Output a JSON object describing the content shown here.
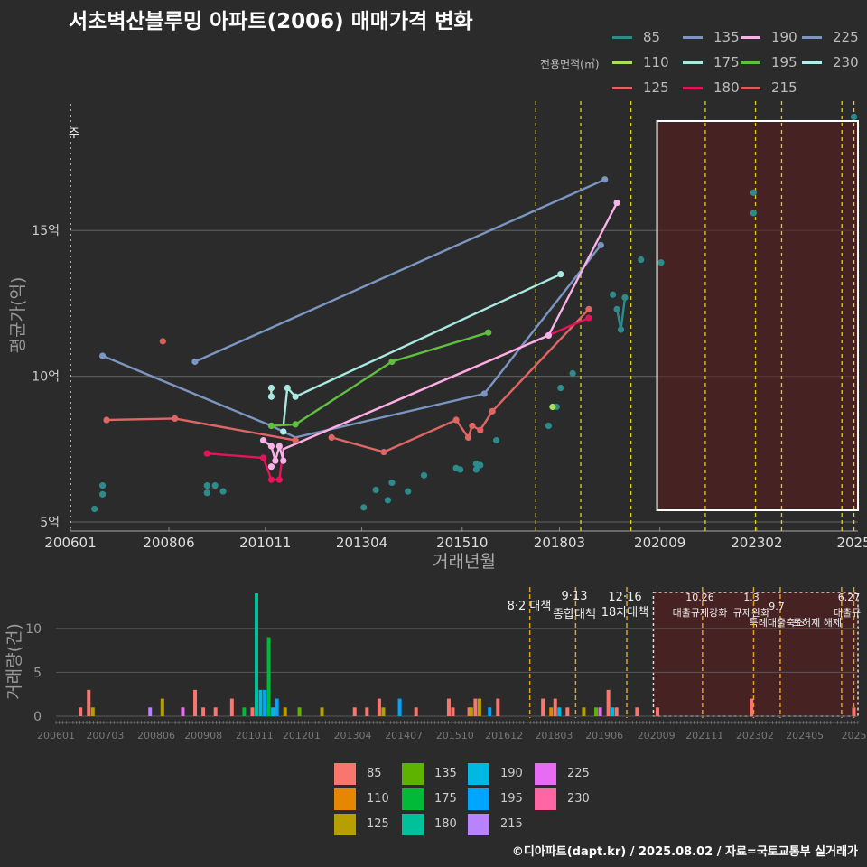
{
  "title": "서초벽산블루밍 아파트(2006) 매매가격 변화",
  "legend_title": "전용면적(㎡)",
  "credit": "©디아파트(dapt.kr) / 2025.08.02 / 자료=국토교통부 실거래가",
  "colors": {
    "85": "#2e8b8b",
    "110": "#a6e35a",
    "125": "#e06666",
    "135": "#7b96c2",
    "175": "#a8e8e0",
    "180": "#e8125a",
    "190": "#f7b2e8",
    "195": "#5fbf3f",
    "215": "#d9605a",
    "225": "#7b96c2",
    "230": "#aef0f0"
  },
  "bar_colors": {
    "85": "#f8766d",
    "110": "#e58700",
    "125": "#b79f00",
    "135": "#5eb300",
    "175": "#00ba38",
    "180": "#00c19a",
    "190": "#00b9e3",
    "195": "#00a5ff",
    "215": "#b983ff",
    "225": "#e76bf3",
    "230": "#ff67a4"
  },
  "chart_data": [
    {
      "type": "line",
      "title": "서초벽산블루밍 아파트(2006) 매매가격 변화",
      "xlabel": "거래년월",
      "ylabel": "평균가(억)",
      "x_ticks": [
        "200601",
        "200806",
        "201011",
        "201304",
        "201510",
        "201803",
        "202009",
        "202302",
        "2025"
      ],
      "y_ticks": [
        "5억",
        "10억",
        "15억"
      ],
      "ylim": [
        5,
        19.5
      ],
      "xlim": [
        2006.0,
        2025.6
      ],
      "top_marker": "주",
      "grid": true,
      "series": [
        {
          "name": "85",
          "lines": [],
          "points": [
            [
              2006.6,
              5.45
            ],
            [
              2006.8,
              5.95
            ],
            [
              2006.8,
              6.25
            ],
            [
              2009.4,
              6.25
            ],
            [
              2009.4,
              6.0
            ],
            [
              2009.6,
              6.25
            ],
            [
              2009.8,
              6.05
            ],
            [
              2013.3,
              5.5
            ],
            [
              2013.6,
              6.1
            ],
            [
              2013.9,
              5.75
            ],
            [
              2014.0,
              6.35
            ],
            [
              2014.4,
              6.05
            ],
            [
              2014.8,
              6.6
            ],
            [
              2015.6,
              6.85
            ],
            [
              2015.7,
              6.8
            ],
            [
              2016.1,
              6.8
            ],
            [
              2016.1,
              7.0
            ],
            [
              2016.2,
              6.95
            ],
            [
              2016.6,
              7.8
            ],
            [
              2017.9,
              8.3
            ],
            [
              2018.1,
              8.95
            ],
            [
              2018.2,
              9.6
            ],
            [
              2018.5,
              10.1
            ],
            [
              2019.5,
              12.8
            ],
            [
              2019.6,
              12.3
            ],
            [
              2019.7,
              11.6
            ],
            [
              2019.8,
              12.7
            ],
            [
              2020.2,
              14.0
            ],
            [
              2020.7,
              13.9
            ],
            [
              2023.0,
              16.3
            ],
            [
              2023.0,
              15.6
            ],
            [
              2025.5,
              18.9
            ]
          ],
          "segments": [
            [
              [
                2019.6,
                12.3
              ],
              [
                2019.7,
                11.6
              ],
              [
                2019.8,
                12.7
              ]
            ]
          ]
        },
        {
          "name": "110",
          "points": [
            [
              2018.0,
              8.95
            ]
          ],
          "segments": []
        },
        {
          "name": "125",
          "points": [
            [
              2006.9,
              8.5
            ],
            [
              2008.6,
              8.55
            ],
            [
              2011.6,
              7.8
            ],
            [
              2012.5,
              7.9
            ],
            [
              2013.8,
              7.4
            ],
            [
              2015.6,
              8.5
            ],
            [
              2015.9,
              7.9
            ],
            [
              2016.0,
              8.3
            ],
            [
              2016.2,
              8.15
            ],
            [
              2016.5,
              8.8
            ],
            [
              2018.9,
              12.3
            ]
          ],
          "segments": [
            [
              [
                2006.9,
                8.5
              ],
              [
                2008.6,
                8.55
              ],
              [
                2011.6,
                7.8
              ]
            ],
            [
              [
                2012.5,
                7.9
              ],
              [
                2013.8,
                7.4
              ],
              [
                2015.6,
                8.5
              ],
              [
                2015.9,
                7.9
              ],
              [
                2016.0,
                8.3
              ],
              [
                2016.2,
                8.15
              ],
              [
                2016.5,
                8.8
              ],
              [
                2018.9,
                12.3
              ]
            ]
          ]
        },
        {
          "name": "135",
          "points": [
            [
              2006.8,
              10.7
            ],
            [
              2011.0,
              8.3
            ],
            [
              2016.3,
              9.4
            ],
            [
              2019.2,
              14.5
            ]
          ],
          "segments": [
            [
              [
                2006.8,
                10.7
              ],
              [
                2011.0,
                8.3
              ],
              [
                2011.6,
                7.9
              ],
              [
                2016.3,
                9.4
              ],
              [
                2019.2,
                14.5
              ]
            ]
          ]
        },
        {
          "name": "175",
          "points": [
            [
              2011.0,
              9.6
            ],
            [
              2011.0,
              9.3
            ],
            [
              2011.4,
              9.6
            ],
            [
              2011.6,
              9.3
            ],
            [
              2018.2,
              13.5
            ]
          ],
          "segments": [
            [
              [
                2011.0,
                9.6
              ],
              [
                2011.0,
                9.3
              ]
            ],
            [
              [
                2011.3,
                8.3
              ],
              [
                2011.4,
                9.6
              ],
              [
                2011.6,
                9.3
              ],
              [
                2018.2,
                13.5
              ]
            ]
          ]
        },
        {
          "name": "180",
          "points": [
            [
              2009.4,
              7.35
            ],
            [
              2010.8,
              7.2
            ],
            [
              2011.0,
              6.45
            ],
            [
              2011.2,
              6.45
            ],
            [
              2018.9,
              12.0
            ]
          ],
          "segments": [
            [
              [
                2009.4,
                7.35
              ],
              [
                2010.8,
                7.2
              ],
              [
                2011.0,
                6.45
              ],
              [
                2011.2,
                6.45
              ],
              [
                2011.3,
                7.5
              ],
              [
                2018.9,
                12.0
              ]
            ]
          ]
        },
        {
          "name": "190",
          "points": [
            [
              2010.8,
              7.8
            ],
            [
              2011.0,
              7.6
            ],
            [
              2011.1,
              7.1
            ],
            [
              2011.2,
              7.6
            ],
            [
              2011.3,
              7.1
            ],
            [
              2011.0,
              6.9
            ],
            [
              2017.9,
              11.4
            ],
            [
              2019.6,
              15.95
            ]
          ],
          "segments": [
            [
              [
                2010.8,
                7.8
              ],
              [
                2011.0,
                7.6
              ],
              [
                2011.1,
                7.1
              ],
              [
                2011.2,
                7.6
              ],
              [
                2011.3,
                7.1
              ],
              [
                2011.3,
                7.5
              ],
              [
                2017.9,
                11.4
              ],
              [
                2019.6,
                15.95
              ]
            ]
          ]
        },
        {
          "name": "195",
          "points": [
            [
              2011.0,
              8.3
            ],
            [
              2011.6,
              8.35
            ],
            [
              2014.0,
              10.5
            ],
            [
              2016.4,
              11.5
            ]
          ],
          "segments": [
            [
              [
                2011.0,
                8.3
              ],
              [
                2011.6,
                8.35
              ],
              [
                2014.0,
                10.5
              ],
              [
                2016.4,
                11.5
              ]
            ]
          ]
        },
        {
          "name": "215",
          "points": [
            [
              2008.3,
              11.2
            ]
          ],
          "segments": []
        },
        {
          "name": "225",
          "points": [
            [
              2009.1,
              10.5
            ],
            [
              2019.3,
              16.75
            ]
          ],
          "segments": [
            [
              [
                2009.1,
                10.5
              ],
              [
                2019.3,
                16.75
              ]
            ]
          ]
        },
        {
          "name": "230",
          "points": [
            [
              2011.3,
              8.1
            ]
          ],
          "segments": []
        }
      ],
      "policy_lines": [
        2017.58,
        2018.7,
        2019.95,
        2021.8,
        2023.05,
        2023.7,
        2025.2,
        2025.5
      ]
    },
    {
      "type": "bar",
      "ylabel": "거래량(건)",
      "y_ticks": [
        "0",
        "5",
        "10"
      ],
      "ylim": [
        0,
        14
      ],
      "x_ticks": [
        "200601",
        "200703",
        "200806",
        "200908",
        "201011",
        "201201",
        "201304",
        "201407",
        "201510",
        "201612",
        "201803",
        "201906",
        "202009",
        "202111",
        "202302",
        "202405",
        "2025"
      ],
      "annotations": [
        {
          "label": "8·2 대책",
          "x": 2017.58
        },
        {
          "label": "9·13",
          "x": 2018.7
        },
        {
          "label": "종합대책",
          "x": 2018.7
        },
        {
          "label": "12·16",
          "x": 2019.95
        },
        {
          "label": "18차대책",
          "x": 2019.95
        },
        {
          "label": "10.26",
          "x": 2021.8
        },
        {
          "label": "대출규제강화",
          "x": 2021.8
        },
        {
          "label": "1.3",
          "x": 2023.05
        },
        {
          "label": "규제완화",
          "x": 2023.05
        },
        {
          "label": "9.7",
          "x": 2023.7
        },
        {
          "label": "특례대출축소",
          "x": 2023.7
        },
        {
          "label": "토허제 해제",
          "x": 2025.2
        },
        {
          "label": "6.27",
          "x": 2025.5
        },
        {
          "label": "대출규",
          "x": 2025.5
        }
      ],
      "bars": [
        [
          2006.6,
          "85",
          1
        ],
        [
          2006.8,
          "85",
          3
        ],
        [
          2006.9,
          "125",
          1
        ],
        [
          2008.6,
          "125",
          2
        ],
        [
          2008.3,
          "215",
          1
        ],
        [
          2009.1,
          "225",
          1
        ],
        [
          2009.4,
          "85",
          3
        ],
        [
          2009.6,
          "85",
          1
        ],
        [
          2009.9,
          "85",
          1
        ],
        [
          2010.3,
          "85",
          2
        ],
        [
          2010.6,
          "175",
          1
        ],
        [
          2010.8,
          "85",
          1
        ],
        [
          2010.9,
          "180",
          14
        ],
        [
          2011.0,
          "190",
          3
        ],
        [
          2011.1,
          "195",
          3
        ],
        [
          2011.2,
          "175",
          9
        ],
        [
          2011.3,
          "190",
          1
        ],
        [
          2011.4,
          "195",
          2
        ],
        [
          2011.6,
          "125",
          1
        ],
        [
          2011.95,
          "135",
          1
        ],
        [
          2012.5,
          "125",
          1
        ],
        [
          2013.3,
          "85",
          1
        ],
        [
          2013.6,
          "85",
          1
        ],
        [
          2013.9,
          "85",
          2
        ],
        [
          2014.0,
          "125",
          1
        ],
        [
          2014.4,
          "195",
          2
        ],
        [
          2014.8,
          "85",
          1
        ],
        [
          2015.6,
          "85",
          2
        ],
        [
          2015.7,
          "85",
          1
        ],
        [
          2016.1,
          "85",
          1
        ],
        [
          2016.15,
          "125",
          1
        ],
        [
          2016.25,
          "85",
          2
        ],
        [
          2016.35,
          "125",
          2
        ],
        [
          2016.6,
          "195",
          1
        ],
        [
          2016.8,
          "85",
          2
        ],
        [
          2017.9,
          "85",
          2
        ],
        [
          2018.1,
          "110",
          1
        ],
        [
          2018.2,
          "85",
          2
        ],
        [
          2018.3,
          "190",
          1
        ],
        [
          2018.5,
          "85",
          1
        ],
        [
          2018.9,
          "125",
          1
        ],
        [
          2019.2,
          "135",
          1
        ],
        [
          2019.3,
          "225",
          1
        ],
        [
          2019.5,
          "85",
          3
        ],
        [
          2019.6,
          "190",
          1
        ],
        [
          2019.7,
          "85",
          1
        ],
        [
          2020.2,
          "85",
          1
        ],
        [
          2020.7,
          "85",
          1
        ],
        [
          2023.0,
          "85",
          2
        ],
        [
          2025.5,
          "85",
          1
        ]
      ]
    }
  ]
}
